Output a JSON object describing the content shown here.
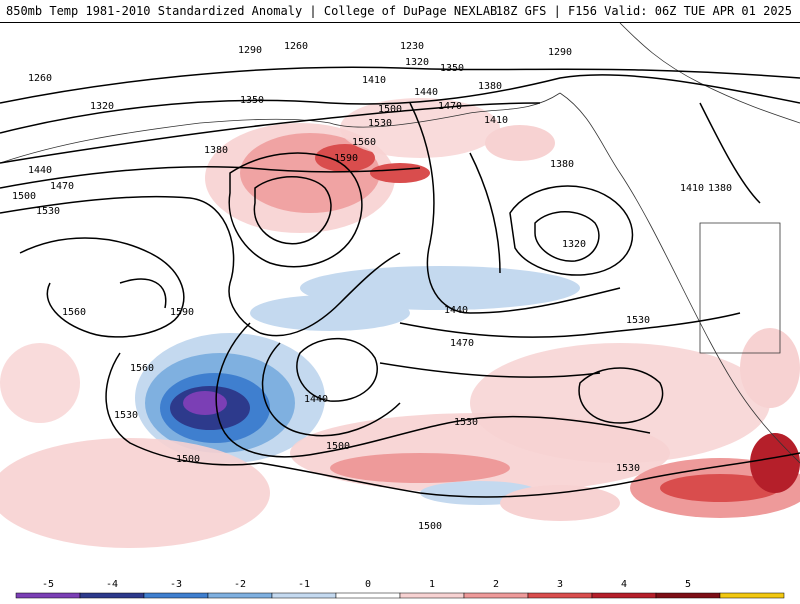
{
  "header": {
    "left_title": "850mb Temp 1981-2010 Standardized Anomaly | College of DuPage NEXLAB",
    "right_title": "18Z GFS | F156 Valid: 06Z TUE APR 01 2025"
  },
  "contours": {
    "labels": [
      "1290",
      "1260",
      "1230",
      "1320",
      "1290",
      "1260",
      "1320",
      "1350",
      "1380",
      "1410",
      "1440",
      "1470",
      "1500",
      "1530",
      "1560",
      "1590",
      "1410",
      "1350",
      "1380",
      "1380",
      "1320",
      "1410",
      "1380",
      "1440",
      "1470",
      "1500",
      "1530",
      "1560",
      "1590",
      "1440",
      "1560",
      "1530",
      "1500",
      "1500",
      "1470",
      "1530",
      "1440",
      "1530",
      "1500",
      "1530"
    ]
  },
  "colorbar": {
    "ticks": [
      "-5",
      "-4",
      "-3",
      "-2",
      "-1",
      "0",
      "1",
      "2",
      "3",
      "4",
      "5"
    ],
    "colors": [
      "#7b3fb5",
      "#2d3a8c",
      "#3f7fcf",
      "#7fb0e0",
      "#c4d9ef",
      "#ffffff",
      "#f7d2d2",
      "#ee9a9a",
      "#d94d4d",
      "#b51f2a",
      "#7d0f16",
      "#f2c811"
    ]
  }
}
